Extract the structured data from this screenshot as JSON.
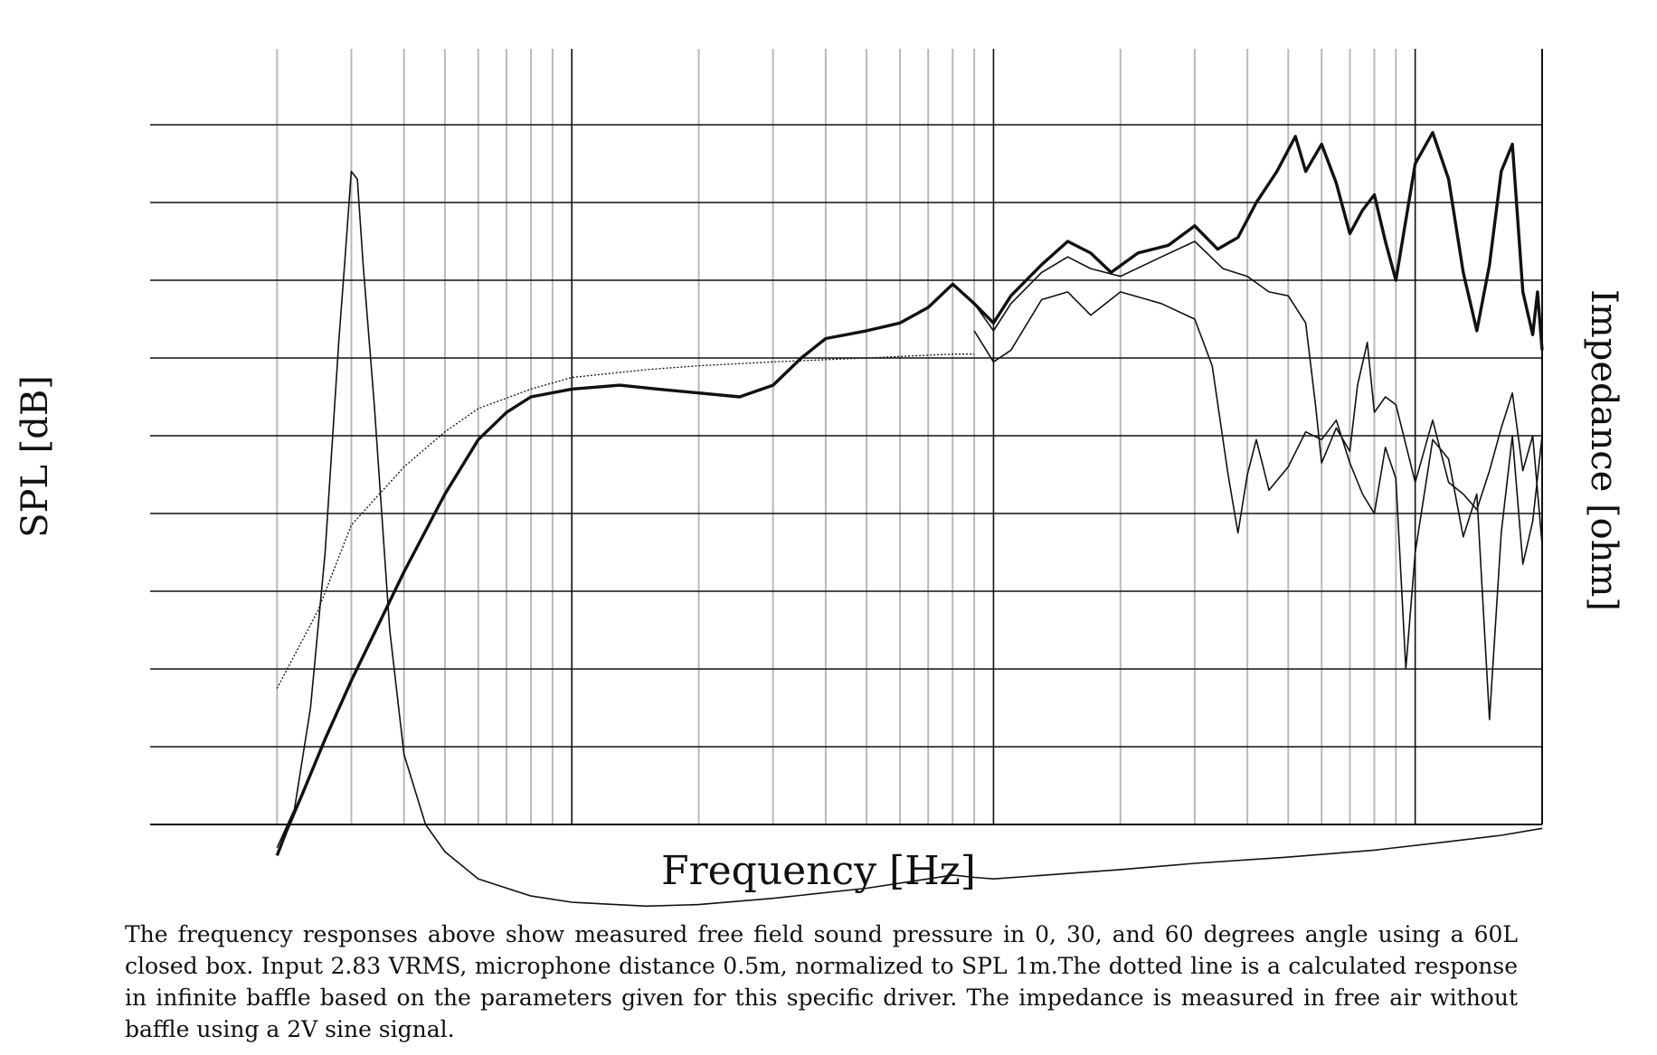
{
  "chart_data": {
    "type": "line",
    "xlabel": "Frequency [Hz]",
    "ylabel_left": "SPL [dB]",
    "ylabel_right": "Impedance [ohm]",
    "x_scale": "log",
    "xlim": [
      10,
      20000
    ],
    "grid": true,
    "series": [
      {
        "name": "",
        "values": [
          [
            20,
            9.6
          ],
          [
            21,
            9.9
          ],
          [
            23,
            10.4
          ],
          [
            26,
            11.1
          ],
          [
            30,
            11.85
          ],
          [
            35,
            12.6
          ],
          [
            40,
            13.25
          ],
          [
            50,
            14.25
          ],
          [
            60,
            14.95
          ],
          [
            70,
            15.3
          ],
          [
            80,
            15.5
          ],
          [
            100,
            15.6
          ],
          [
            130,
            15.65
          ],
          [
            160,
            15.6
          ],
          [
            200,
            15.55
          ],
          [
            250,
            15.5
          ],
          [
            300,
            15.65
          ],
          [
            350,
            16.0
          ],
          [
            400,
            16.25
          ],
          [
            500,
            16.35
          ],
          [
            600,
            16.45
          ],
          [
            700,
            16.65
          ],
          [
            800,
            16.95
          ],
          [
            900,
            16.7
          ],
          [
            1000,
            16.45
          ],
          [
            1100,
            16.8
          ],
          [
            1300,
            17.2
          ],
          [
            1500,
            17.5
          ],
          [
            1700,
            17.35
          ],
          [
            1900,
            17.1
          ],
          [
            2200,
            17.35
          ],
          [
            2600,
            17.45
          ],
          [
            3000,
            17.7
          ],
          [
            3400,
            17.4
          ],
          [
            3800,
            17.55
          ],
          [
            4200,
            18.0
          ],
          [
            4700,
            18.4
          ],
          [
            5200,
            18.85
          ],
          [
            5500,
            18.4
          ],
          [
            6000,
            18.75
          ],
          [
            6500,
            18.25
          ],
          [
            7000,
            17.6
          ],
          [
            7500,
            17.9
          ],
          [
            8000,
            18.1
          ],
          [
            8500,
            17.5
          ],
          [
            9000,
            17.0
          ],
          [
            10000,
            18.5
          ],
          [
            11000,
            18.9
          ],
          [
            12000,
            18.3
          ],
          [
            13000,
            17.1
          ],
          [
            14000,
            16.35
          ],
          [
            15000,
            17.2
          ],
          [
            16000,
            18.4
          ],
          [
            17000,
            18.75
          ],
          [
            18000,
            16.85
          ],
          [
            19000,
            16.3
          ],
          [
            19500,
            16.85
          ],
          [
            20000,
            16.1
          ]
        ]
      },
      {
        "name": "",
        "values": [
          [
            900,
            16.7
          ],
          [
            1000,
            16.35
          ],
          [
            1100,
            16.7
          ],
          [
            1300,
            17.1
          ],
          [
            1500,
            17.3
          ],
          [
            1700,
            17.15
          ],
          [
            2000,
            17.05
          ],
          [
            2500,
            17.3
          ],
          [
            3000,
            17.5
          ],
          [
            3500,
            17.15
          ],
          [
            4000,
            17.05
          ],
          [
            4500,
            16.85
          ],
          [
            5000,
            16.8
          ],
          [
            5500,
            16.45
          ],
          [
            5800,
            15.4
          ],
          [
            6000,
            14.65
          ],
          [
            6500,
            15.1
          ],
          [
            7000,
            14.8
          ],
          [
            7300,
            15.65
          ],
          [
            7700,
            16.2
          ],
          [
            8000,
            15.3
          ],
          [
            8500,
            15.5
          ],
          [
            9000,
            15.4
          ],
          [
            10000,
            14.4
          ],
          [
            11000,
            15.2
          ],
          [
            12000,
            14.4
          ],
          [
            13000,
            14.25
          ],
          [
            14000,
            14.05
          ],
          [
            15000,
            14.55
          ],
          [
            16000,
            15.1
          ],
          [
            17000,
            15.55
          ],
          [
            18000,
            14.55
          ],
          [
            19000,
            15.0
          ],
          [
            20000,
            13.6
          ]
        ]
      },
      {
        "name": "",
        "values": [
          [
            900,
            16.35
          ],
          [
            1000,
            15.95
          ],
          [
            1100,
            16.1
          ],
          [
            1300,
            16.75
          ],
          [
            1500,
            16.85
          ],
          [
            1700,
            16.55
          ],
          [
            2000,
            16.85
          ],
          [
            2500,
            16.7
          ],
          [
            3000,
            16.5
          ],
          [
            3300,
            15.9
          ],
          [
            3600,
            14.5
          ],
          [
            3800,
            13.75
          ],
          [
            4000,
            14.5
          ],
          [
            4200,
            14.95
          ],
          [
            4500,
            14.3
          ],
          [
            5000,
            14.6
          ],
          [
            5500,
            15.05
          ],
          [
            6000,
            14.95
          ],
          [
            6500,
            15.2
          ],
          [
            7000,
            14.65
          ],
          [
            7500,
            14.25
          ],
          [
            8000,
            14.0
          ],
          [
            8500,
            14.85
          ],
          [
            9000,
            14.45
          ],
          [
            9500,
            12.0
          ],
          [
            10000,
            13.5
          ],
          [
            11000,
            14.95
          ],
          [
            12000,
            14.7
          ],
          [
            13000,
            13.7
          ],
          [
            14000,
            14.25
          ],
          [
            15000,
            11.35
          ],
          [
            16000,
            13.75
          ],
          [
            17000,
            15.0
          ],
          [
            18000,
            13.35
          ],
          [
            19000,
            13.9
          ],
          [
            20000,
            15.0
          ]
        ]
      },
      {
        "name": "",
        "values": [
          [
            20,
            11.75
          ],
          [
            25,
            12.75
          ],
          [
            30,
            13.85
          ],
          [
            40,
            14.6
          ],
          [
            50,
            15.05
          ],
          [
            60,
            15.35
          ],
          [
            80,
            15.6
          ],
          [
            100,
            15.75
          ],
          [
            150,
            15.85
          ],
          [
            200,
            15.9
          ],
          [
            300,
            15.95
          ],
          [
            500,
            16.0
          ],
          [
            800,
            16.05
          ],
          [
            900,
            16.05
          ]
        ]
      },
      {
        "name": "",
        "values": [
          [
            20,
            9.7
          ],
          [
            22,
            10.2
          ],
          [
            24,
            11.5
          ],
          [
            26,
            13.5
          ],
          [
            28,
            16.2
          ],
          [
            29,
            17.3
          ],
          [
            30,
            18.4
          ],
          [
            31,
            18.3
          ],
          [
            32,
            17.2
          ],
          [
            34,
            15.4
          ],
          [
            37,
            12.5
          ],
          [
            40,
            10.9
          ],
          [
            45,
            10.0
          ],
          [
            50,
            9.65
          ],
          [
            60,
            9.3
          ],
          [
            80,
            9.08
          ],
          [
            100,
            9.0
          ],
          [
            150,
            8.95
          ],
          [
            200,
            8.97
          ],
          [
            300,
            9.05
          ],
          [
            500,
            9.18
          ],
          [
            700,
            9.3
          ],
          [
            800,
            9.35
          ],
          [
            900,
            9.32
          ],
          [
            1000,
            9.3
          ],
          [
            1500,
            9.37
          ],
          [
            2000,
            9.42
          ],
          [
            3000,
            9.5
          ],
          [
            5000,
            9.58
          ],
          [
            8000,
            9.67
          ],
          [
            12000,
            9.78
          ],
          [
            16000,
            9.86
          ],
          [
            20000,
            9.95
          ]
        ]
      }
    ]
  },
  "caption": "The frequency responses above show measured free field sound pressure in 0, 30, and 60 degrees angle using a 60L closed box. Input 2.83 VRMS, microphone distance 0.5m, normalized to SPL 1m.The dotted line is a calculated response in infinite baffle based on the parameters given for this specific driver. The impedance is measured in free air without baffle using a 2V sine signal."
}
